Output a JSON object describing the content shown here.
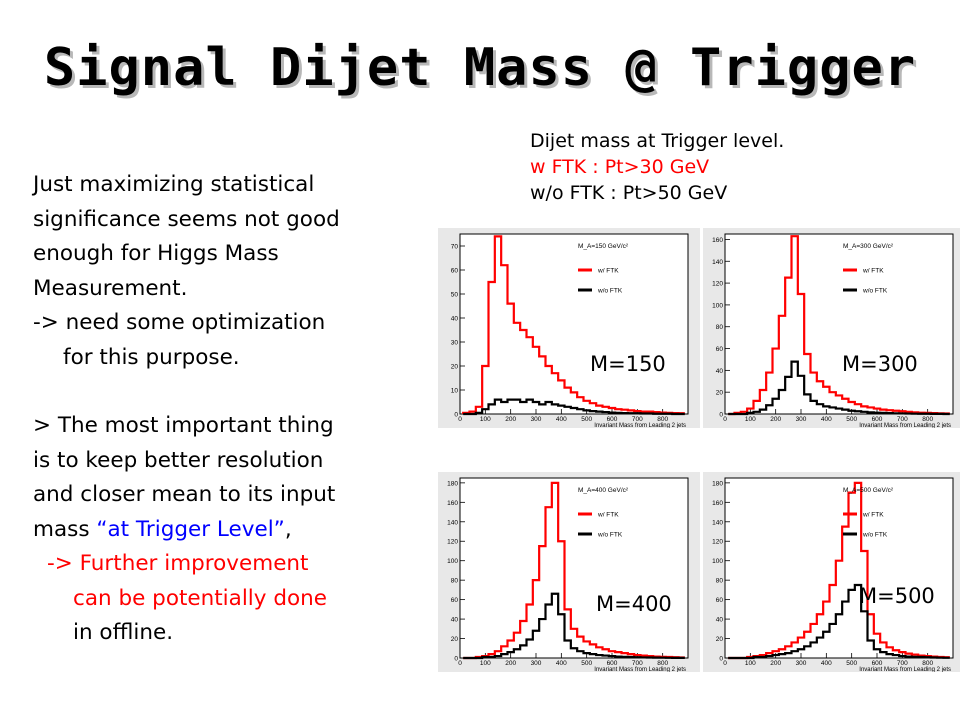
{
  "title": "Signal Dijet Mass @ Trigger",
  "note": {
    "line1": "Dijet mass at Trigger level.",
    "line2": "w FTK : Pt>30 GeV",
    "line3": "w/o FTK : Pt>50 GeV"
  },
  "body": {
    "l1": "Just maximizing statistical",
    "l2": "significance seems not good",
    "l3": "enough for Higgs Mass",
    "l4": "Measurement.",
    "l5": "-> need some optimization",
    "l6": "for this purpose.",
    "l7": "> The most important thing",
    "l8": "is to keep better resolution",
    "l9": "and closer mean to its input",
    "l10a": "mass ",
    "l10b": "“at Trigger Level”",
    "l10c": ",",
    "l11": "-> Further improvement",
    "l12": "can be potentially done",
    "l13": "in offline."
  },
  "colors": {
    "accent_red": "#ff0000",
    "accent_blue": "#0000ff"
  },
  "chart_data": [
    {
      "type": "line",
      "mass_label": "M=150",
      "legend_title": "M_A=150 GeV/c²",
      "xlabel": "Invariant Mass from Leading 2 jets",
      "xlim": [
        0,
        900
      ],
      "ylim": [
        0,
        75
      ],
      "xticks": [
        0,
        100,
        200,
        300,
        400,
        500,
        600,
        700,
        800
      ],
      "yticks": [
        0,
        10,
        20,
        30,
        40,
        50,
        60,
        70
      ],
      "series": [
        {
          "name": "w/ FTK",
          "color": "#ff0000",
          "x": [
            25,
            50,
            75,
            100,
            125,
            150,
            175,
            200,
            225,
            250,
            275,
            300,
            325,
            350,
            375,
            400,
            425,
            450,
            475,
            500,
            525,
            550,
            575,
            600,
            625,
            650,
            675,
            700,
            725,
            750,
            775,
            800,
            825,
            850,
            875
          ],
          "y": [
            0.5,
            1,
            3,
            20,
            55,
            74,
            62,
            46,
            38,
            35,
            32,
            28,
            24,
            20,
            17,
            14,
            11,
            9,
            7,
            5.5,
            4.5,
            3.5,
            3,
            2.5,
            2,
            1.8,
            1.5,
            1.2,
            1,
            1,
            0.8,
            0.6,
            0.5,
            0.4,
            0.3
          ]
        },
        {
          "name": "w/o FTK",
          "color": "#000000",
          "x": [
            25,
            50,
            75,
            100,
            125,
            150,
            175,
            200,
            225,
            250,
            275,
            300,
            325,
            350,
            375,
            400,
            425,
            450,
            475,
            500,
            525,
            550,
            575,
            600,
            625,
            650,
            675,
            700,
            725,
            750,
            775,
            800,
            825,
            850,
            875
          ],
          "y": [
            0,
            0,
            0.5,
            2,
            4,
            6,
            5,
            6,
            6,
            5,
            6,
            5,
            4,
            5,
            4,
            3.5,
            3,
            2.5,
            2,
            1.5,
            1.2,
            1,
            0.8,
            0.6,
            0.5,
            0.4,
            0.3,
            0.3,
            0.2,
            0.2,
            0.1,
            0.1,
            0.1,
            0,
            0
          ]
        }
      ]
    },
    {
      "type": "line",
      "mass_label": "M=300",
      "legend_title": "M_A=300 GeV/c²",
      "xlabel": "Invariant Mass from Leading 2 jets",
      "xlim": [
        0,
        900
      ],
      "ylim": [
        0,
        165
      ],
      "xticks": [
        0,
        100,
        200,
        300,
        400,
        500,
        600,
        700,
        800
      ],
      "yticks": [
        0,
        20,
        40,
        60,
        80,
        100,
        120,
        140,
        160
      ],
      "series": [
        {
          "name": "w/ FTK",
          "color": "#ff0000",
          "x": [
            25,
            50,
            75,
            100,
            125,
            150,
            175,
            200,
            225,
            250,
            275,
            300,
            325,
            350,
            375,
            400,
            425,
            450,
            475,
            500,
            525,
            550,
            575,
            600,
            625,
            650,
            675,
            700,
            725,
            750,
            775,
            800,
            825,
            850,
            875
          ],
          "y": [
            0,
            1,
            2,
            5,
            12,
            22,
            38,
            60,
            90,
            125,
            163,
            110,
            55,
            38,
            30,
            25,
            20,
            17,
            14,
            11,
            9,
            7,
            6,
            5,
            4,
            3.5,
            3,
            2.5,
            2,
            1.5,
            1.2,
            1,
            0.8,
            0.6,
            0.5
          ]
        },
        {
          "name": "w/o FTK",
          "color": "#000000",
          "x": [
            25,
            50,
            75,
            100,
            125,
            150,
            175,
            200,
            225,
            250,
            275,
            300,
            325,
            350,
            375,
            400,
            425,
            450,
            475,
            500,
            525,
            550,
            575,
            600,
            625,
            650,
            675,
            700,
            725,
            750,
            775,
            800,
            825,
            850,
            875
          ],
          "y": [
            0,
            0,
            0,
            1,
            2,
            4,
            8,
            14,
            22,
            34,
            48,
            35,
            18,
            12,
            9,
            7,
            6,
            5,
            4,
            3,
            2.5,
            2,
            1.5,
            1.2,
            1,
            0.8,
            0.6,
            0.5,
            0.4,
            0.3,
            0.2,
            0.2,
            0.1,
            0.1,
            0
          ]
        }
      ]
    },
    {
      "type": "line",
      "mass_label": "M=400",
      "legend_title": "M_A=400 GeV/c²",
      "xlabel": "Invariant Mass from Leading 2 jets",
      "xlim": [
        0,
        900
      ],
      "ylim": [
        0,
        185
      ],
      "xticks": [
        0,
        100,
        200,
        300,
        400,
        500,
        600,
        700,
        800
      ],
      "yticks": [
        0,
        20,
        40,
        60,
        80,
        100,
        120,
        140,
        160,
        180
      ],
      "series": [
        {
          "name": "w/ FTK",
          "color": "#ff0000",
          "x": [
            25,
            50,
            75,
            100,
            125,
            150,
            175,
            200,
            225,
            250,
            275,
            300,
            325,
            350,
            375,
            400,
            425,
            450,
            475,
            500,
            525,
            550,
            575,
            600,
            625,
            650,
            675,
            700,
            725,
            750,
            775,
            800,
            825,
            850,
            875
          ],
          "y": [
            0,
            0,
            1,
            2,
            4,
            7,
            12,
            18,
            26,
            38,
            55,
            80,
            115,
            155,
            180,
            120,
            50,
            30,
            22,
            17,
            14,
            11,
            9,
            7,
            6,
            5,
            4,
            3,
            2.5,
            2,
            1.5,
            1.2,
            1,
            0.8,
            0.5
          ]
        },
        {
          "name": "w/o FTK",
          "color": "#000000",
          "x": [
            25,
            50,
            75,
            100,
            125,
            150,
            175,
            200,
            225,
            250,
            275,
            300,
            325,
            350,
            375,
            400,
            425,
            450,
            475,
            500,
            525,
            550,
            575,
            600,
            625,
            650,
            675,
            700,
            725,
            750,
            775,
            800,
            825,
            850,
            875
          ],
          "y": [
            0,
            0,
            0,
            1,
            1,
            2,
            4,
            6,
            9,
            13,
            19,
            28,
            40,
            55,
            66,
            45,
            18,
            10,
            7,
            5,
            4,
            3,
            2.5,
            2,
            1.5,
            1.2,
            1,
            0.8,
            0.6,
            0.5,
            0.4,
            0.3,
            0.2,
            0.1,
            0.1
          ]
        }
      ]
    },
    {
      "type": "line",
      "mass_label": "M=500",
      "legend_title": "M_A=500 GeV/c²",
      "xlabel": "Invariant Mass from Leading 2 jets",
      "xlim": [
        0,
        900
      ],
      "ylim": [
        0,
        185
      ],
      "xticks": [
        0,
        100,
        200,
        300,
        400,
        500,
        600,
        700,
        800
      ],
      "yticks": [
        0,
        20,
        40,
        60,
        80,
        100,
        120,
        140,
        160,
        180
      ],
      "series": [
        {
          "name": "w/ FTK",
          "color": "#ff0000",
          "x": [
            25,
            50,
            75,
            100,
            125,
            150,
            175,
            200,
            225,
            250,
            275,
            300,
            325,
            350,
            375,
            400,
            425,
            450,
            475,
            500,
            525,
            550,
            575,
            600,
            625,
            650,
            675,
            700,
            725,
            750,
            775,
            800,
            825,
            850,
            875
          ],
          "y": [
            0,
            0,
            0,
            1,
            2,
            3,
            5,
            7,
            9,
            12,
            16,
            21,
            27,
            35,
            45,
            58,
            75,
            100,
            135,
            170,
            180,
            110,
            45,
            25,
            16,
            11,
            8,
            6,
            4.5,
            3.5,
            2.5,
            2,
            1.5,
            1,
            0.8
          ]
        },
        {
          "name": "w/o FTK",
          "color": "#000000",
          "x": [
            25,
            50,
            75,
            100,
            125,
            150,
            175,
            200,
            225,
            250,
            275,
            300,
            325,
            350,
            375,
            400,
            425,
            450,
            475,
            500,
            525,
            550,
            575,
            600,
            625,
            650,
            675,
            700,
            725,
            750,
            775,
            800,
            825,
            850,
            875
          ],
          "y": [
            0,
            0,
            0,
            0,
            1,
            1,
            2,
            3,
            4,
            5,
            7,
            9,
            12,
            16,
            21,
            27,
            35,
            45,
            58,
            70,
            75,
            48,
            18,
            9,
            6,
            4,
            3,
            2,
            1.5,
            1.2,
            1,
            0.8,
            0.5,
            0.3,
            0.2
          ]
        }
      ]
    }
  ]
}
